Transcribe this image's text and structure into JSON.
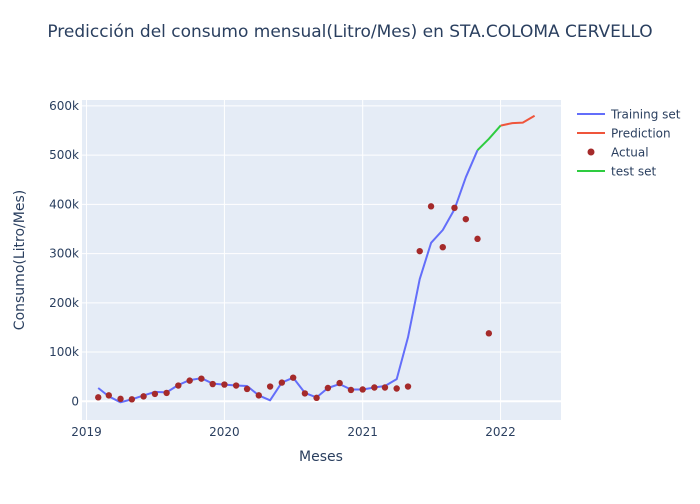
{
  "chart_data": {
    "type": "line",
    "title": "Predicción del consumo mensual(Litro/Mes) en STA.COLOMA CERVELLO",
    "xlabel": "Meses",
    "ylabel": "Consumo(Litro/Mes)",
    "x_ticks": [
      "2019",
      "2020",
      "2021",
      "2022"
    ],
    "y_ticks": [
      "0",
      "100k",
      "200k",
      "300k",
      "400k",
      "500k",
      "600k"
    ],
    "y_tick_values": [
      0,
      100000,
      200000,
      300000,
      400000,
      500000,
      600000
    ],
    "xlim": [
      "2018-12-20",
      "2022-06-10"
    ],
    "ylim": [
      -38000,
      612000
    ],
    "grid": true,
    "legend_position": "top-right",
    "series": [
      {
        "name": "Training set",
        "kind": "line",
        "color": "#636efa",
        "points": [
          [
            "2019-02-01",
            27000
          ],
          [
            "2019-03-01",
            10000
          ],
          [
            "2019-04-01",
            -2000
          ],
          [
            "2019-05-01",
            4000
          ],
          [
            "2019-06-01",
            12000
          ],
          [
            "2019-07-01",
            19000
          ],
          [
            "2019-08-01",
            18000
          ],
          [
            "2019-09-01",
            33000
          ],
          [
            "2019-10-01",
            43000
          ],
          [
            "2019-11-01",
            47000
          ],
          [
            "2019-12-01",
            36000
          ],
          [
            "2020-01-01",
            34000
          ],
          [
            "2020-02-01",
            32000
          ],
          [
            "2020-03-01",
            31000
          ],
          [
            "2020-04-01",
            12000
          ],
          [
            "2020-05-01",
            2000
          ],
          [
            "2020-06-01",
            38000
          ],
          [
            "2020-07-01",
            48000
          ],
          [
            "2020-08-01",
            17000
          ],
          [
            "2020-09-01",
            8000
          ],
          [
            "2020-10-01",
            27000
          ],
          [
            "2020-11-01",
            35000
          ],
          [
            "2020-12-01",
            24000
          ],
          [
            "2021-01-01",
            24000
          ],
          [
            "2021-02-01",
            28000
          ],
          [
            "2021-03-01",
            31000
          ],
          [
            "2021-04-01",
            45000
          ],
          [
            "2021-05-01",
            130000
          ],
          [
            "2021-06-01",
            248000
          ],
          [
            "2021-07-01",
            322000
          ],
          [
            "2021-08-01",
            348000
          ],
          [
            "2021-09-01",
            390000
          ],
          [
            "2021-10-01",
            455000
          ],
          [
            "2021-11-01",
            510000
          ]
        ]
      },
      {
        "name": "Prediction",
        "kind": "line",
        "color": "#ef553b",
        "points": [
          [
            "2022-01-01",
            560000
          ],
          [
            "2022-02-01",
            565000
          ],
          [
            "2022-03-01",
            566000
          ],
          [
            "2022-04-01",
            580000
          ]
        ]
      },
      {
        "name": "Actual",
        "kind": "markers",
        "color": "#a52a2a",
        "points": [
          [
            "2019-02-01",
            8000
          ],
          [
            "2019-03-01",
            12000
          ],
          [
            "2019-04-01",
            5000
          ],
          [
            "2019-05-01",
            4000
          ],
          [
            "2019-06-01",
            10000
          ],
          [
            "2019-07-01",
            15000
          ],
          [
            "2019-08-01",
            17000
          ],
          [
            "2019-09-01",
            32000
          ],
          [
            "2019-10-01",
            42000
          ],
          [
            "2019-11-01",
            46000
          ],
          [
            "2019-12-01",
            35000
          ],
          [
            "2020-01-01",
            34000
          ],
          [
            "2020-02-01",
            32000
          ],
          [
            "2020-03-01",
            25000
          ],
          [
            "2020-04-01",
            12000
          ],
          [
            "2020-05-01",
            30000
          ],
          [
            "2020-06-01",
            38000
          ],
          [
            "2020-07-01",
            48000
          ],
          [
            "2020-08-01",
            16000
          ],
          [
            "2020-09-01",
            7000
          ],
          [
            "2020-10-01",
            27000
          ],
          [
            "2020-11-01",
            37000
          ],
          [
            "2020-12-01",
            23000
          ],
          [
            "2021-01-01",
            24000
          ],
          [
            "2021-02-01",
            28000
          ],
          [
            "2021-03-01",
            28000
          ],
          [
            "2021-04-01",
            26000
          ],
          [
            "2021-05-01",
            30000
          ],
          [
            "2021-06-01",
            305000
          ],
          [
            "2021-07-01",
            396000
          ],
          [
            "2021-08-01",
            313000
          ],
          [
            "2021-09-01",
            393000
          ],
          [
            "2021-10-01",
            370000
          ],
          [
            "2021-11-01",
            330000
          ],
          [
            "2021-12-01",
            138000
          ]
        ]
      },
      {
        "name": "test set",
        "kind": "line",
        "color": "#2ecc40",
        "points": [
          [
            "2021-11-01",
            510000
          ],
          [
            "2021-12-01",
            533000
          ],
          [
            "2022-01-01",
            560000
          ]
        ]
      }
    ]
  }
}
